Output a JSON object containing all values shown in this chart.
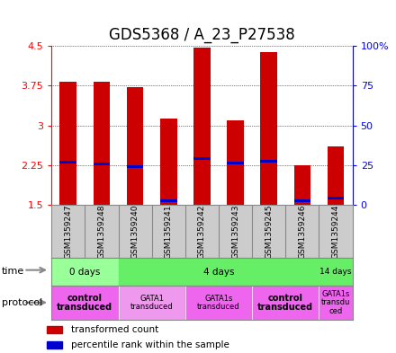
{
  "title": "GDS5368 / A_23_P27538",
  "samples": [
    "GSM1359247",
    "GSM1359248",
    "GSM1359240",
    "GSM1359241",
    "GSM1359242",
    "GSM1359243",
    "GSM1359245",
    "GSM1359246",
    "GSM1359244"
  ],
  "bar_tops": [
    3.82,
    3.82,
    3.72,
    3.12,
    4.47,
    3.1,
    4.38,
    2.25,
    2.6
  ],
  "bar_bottom": 1.5,
  "blue_marks": [
    2.3,
    2.27,
    2.22,
    1.57,
    2.37,
    2.28,
    2.32,
    1.57,
    1.62
  ],
  "ylim_left": [
    1.5,
    4.5
  ],
  "yticks_left": [
    1.5,
    2.25,
    3.0,
    3.75,
    4.5
  ],
  "ytick_labels_left": [
    "1.5",
    "2.25",
    "3",
    "3.75",
    "4.5"
  ],
  "yticks_right": [
    0,
    25,
    50,
    75,
    100
  ],
  "ytick_labels_right": [
    "0",
    "25",
    "50",
    "75",
    "100%"
  ],
  "bar_color": "#cc0000",
  "blue_color": "#0000cc",
  "time_groups": [
    {
      "label": "0 days",
      "start": 0,
      "end": 2,
      "color": "#99ff99"
    },
    {
      "label": "4 days",
      "start": 2,
      "end": 8,
      "color": "#66ee66"
    },
    {
      "label": "14 days",
      "start": 8,
      "end": 9,
      "color": "#66ee66"
    }
  ],
  "protocol_groups": [
    {
      "label": "control\ntransduced",
      "start": 0,
      "end": 2,
      "color": "#ee66ee",
      "bold": true
    },
    {
      "label": "GATA1\ntransduced",
      "start": 2,
      "end": 4,
      "color": "#ee99ee",
      "bold": false
    },
    {
      "label": "GATA1s\ntransduced",
      "start": 4,
      "end": 6,
      "color": "#ee66ee",
      "bold": false
    },
    {
      "label": "control\ntransduced",
      "start": 6,
      "end": 8,
      "color": "#ee66ee",
      "bold": true
    },
    {
      "label": "GATA1s\ntransdu\nced",
      "start": 8,
      "end": 9,
      "color": "#ee66ee",
      "bold": false
    }
  ],
  "legend_items": [
    {
      "color": "#cc0000",
      "label": "transformed count"
    },
    {
      "color": "#0000cc",
      "label": "percentile rank within the sample"
    }
  ],
  "bar_width": 0.5,
  "sample_bg_color": "#cccccc",
  "sample_border_color": "#888888",
  "title_fontsize": 12,
  "tick_fontsize": 8,
  "label_fontsize": 8
}
